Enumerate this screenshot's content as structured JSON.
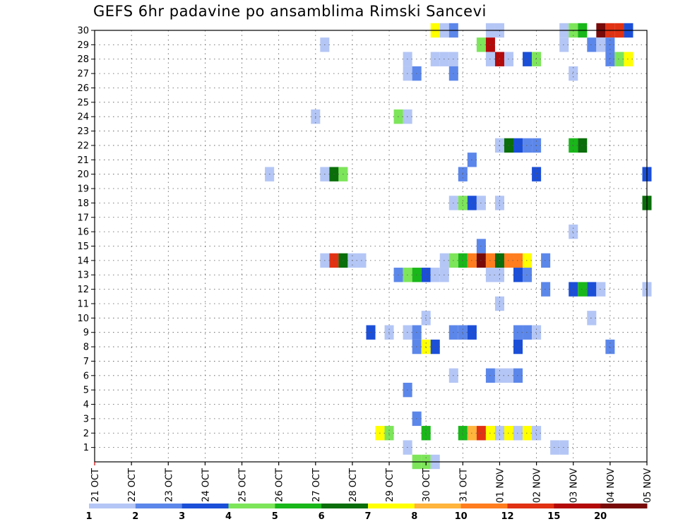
{
  "chart_data": {
    "type": "heatmap",
    "title": "GEFS 6hr padavine po ansamblima Rimski Sancevi",
    "xlabel": "",
    "ylabel": "",
    "x_tick_labels": [
      "21 OCT",
      "22 OCT",
      "23 OCT",
      "24 OCT",
      "25 OCT",
      "26 OCT",
      "27 OCT",
      "28 OCT",
      "29 OCT",
      "30 OCT",
      "31 OCT",
      "01 NOV",
      "02 NOV",
      "03 NOV",
      "04 NOV",
      "05 NOV"
    ],
    "y_tick_labels": [
      "1",
      "2",
      "3",
      "4",
      "5",
      "6",
      "7",
      "8",
      "9",
      "10",
      "11",
      "12",
      "13",
      "14",
      "15",
      "16",
      "17",
      "18",
      "19",
      "20",
      "21",
      "22",
      "23",
      "24",
      "25",
      "26",
      "27",
      "28",
      "29",
      "30"
    ],
    "x_range_steps": [
      0,
      60
    ],
    "steps_per_day": 4,
    "y_range": [
      0,
      30
    ],
    "grid": true,
    "colorbar": {
      "labels": [
        "1",
        "2",
        "3",
        "4",
        "5",
        "6",
        "7",
        "8",
        "10",
        "12",
        "15",
        "20"
      ],
      "colors": [
        "#b4c6f5",
        "#5c87ea",
        "#1c4fd8",
        "#7de55a",
        "#19b719",
        "#0a6e0a",
        "#ffff00",
        "#ffb43c",
        "#ff7d1e",
        "#e13214",
        "#b40a0a",
        "#780a0a"
      ]
    },
    "cells": [
      [
        37,
        30,
        7
      ],
      [
        38,
        30,
        1
      ],
      [
        39,
        30,
        2
      ],
      [
        43,
        30,
        1
      ],
      [
        44,
        30,
        1
      ],
      [
        51,
        30,
        1
      ],
      [
        52,
        30,
        4
      ],
      [
        53,
        30,
        5
      ],
      [
        55,
        30,
        12
      ],
      [
        56,
        30,
        10
      ],
      [
        57,
        30,
        10
      ],
      [
        58,
        30,
        3
      ],
      [
        25,
        29,
        1
      ],
      [
        42,
        29,
        4
      ],
      [
        43,
        29,
        11
      ],
      [
        51,
        29,
        1
      ],
      [
        54,
        29,
        2
      ],
      [
        55,
        29,
        1
      ],
      [
        56,
        29,
        2
      ],
      [
        34,
        28,
        1
      ],
      [
        37,
        28,
        1
      ],
      [
        38,
        28,
        1
      ],
      [
        39,
        28,
        1
      ],
      [
        43,
        28,
        1
      ],
      [
        44,
        28,
        11
      ],
      [
        45,
        28,
        1
      ],
      [
        47,
        28,
        3
      ],
      [
        48,
        28,
        4
      ],
      [
        56,
        28,
        2
      ],
      [
        57,
        28,
        4
      ],
      [
        58,
        28,
        7
      ],
      [
        34,
        27,
        1
      ],
      [
        35,
        27,
        2
      ],
      [
        39,
        27,
        2
      ],
      [
        52,
        27,
        1
      ],
      [
        24,
        24,
        1
      ],
      [
        33,
        24,
        4
      ],
      [
        34,
        24,
        1
      ],
      [
        44,
        22,
        1
      ],
      [
        45,
        22,
        6
      ],
      [
        46,
        22,
        3
      ],
      [
        47,
        22,
        2
      ],
      [
        48,
        22,
        2
      ],
      [
        52,
        22,
        5
      ],
      [
        53,
        22,
        6
      ],
      [
        41,
        21,
        2
      ],
      [
        19,
        20,
        1
      ],
      [
        25,
        20,
        1
      ],
      [
        26,
        20,
        6
      ],
      [
        27,
        20,
        4
      ],
      [
        40,
        20,
        2
      ],
      [
        48,
        20,
        3
      ],
      [
        60,
        20,
        3
      ],
      [
        39,
        18,
        1
      ],
      [
        40,
        18,
        4
      ],
      [
        41,
        18,
        3
      ],
      [
        42,
        18,
        1
      ],
      [
        44,
        18,
        1
      ],
      [
        60,
        18,
        6
      ],
      [
        52,
        16,
        1
      ],
      [
        42,
        15,
        2
      ],
      [
        25,
        14,
        1
      ],
      [
        26,
        14,
        10
      ],
      [
        27,
        14,
        6
      ],
      [
        28,
        14,
        1
      ],
      [
        29,
        14,
        1
      ],
      [
        38,
        14,
        1
      ],
      [
        39,
        14,
        4
      ],
      [
        40,
        14,
        5
      ],
      [
        41,
        14,
        9
      ],
      [
        42,
        14,
        12
      ],
      [
        43,
        14,
        9
      ],
      [
        44,
        14,
        6
      ],
      [
        45,
        14,
        9
      ],
      [
        46,
        14,
        9
      ],
      [
        47,
        14,
        7
      ],
      [
        49,
        14,
        2
      ],
      [
        33,
        13,
        2
      ],
      [
        34,
        13,
        4
      ],
      [
        35,
        13,
        5
      ],
      [
        36,
        13,
        3
      ],
      [
        37,
        13,
        1
      ],
      [
        38,
        13,
        1
      ],
      [
        43,
        13,
        1
      ],
      [
        44,
        13,
        1
      ],
      [
        46,
        13,
        3
      ],
      [
        47,
        13,
        2
      ],
      [
        49,
        12,
        2
      ],
      [
        52,
        12,
        3
      ],
      [
        53,
        12,
        5
      ],
      [
        54,
        12,
        3
      ],
      [
        55,
        12,
        1
      ],
      [
        60,
        12,
        1
      ],
      [
        44,
        11,
        1
      ],
      [
        36,
        10,
        1
      ],
      [
        54,
        10,
        1
      ],
      [
        30,
        9,
        3
      ],
      [
        32,
        9,
        1
      ],
      [
        34,
        9,
        1
      ],
      [
        35,
        9,
        2
      ],
      [
        39,
        9,
        2
      ],
      [
        40,
        9,
        2
      ],
      [
        41,
        9,
        3
      ],
      [
        46,
        9,
        2
      ],
      [
        47,
        9,
        2
      ],
      [
        48,
        9,
        1
      ],
      [
        35,
        8,
        2
      ],
      [
        36,
        8,
        7
      ],
      [
        37,
        8,
        3
      ],
      [
        46,
        8,
        3
      ],
      [
        56,
        8,
        2
      ],
      [
        39,
        6,
        1
      ],
      [
        43,
        6,
        2
      ],
      [
        44,
        6,
        1
      ],
      [
        45,
        6,
        1
      ],
      [
        46,
        6,
        2
      ],
      [
        34,
        5,
        2
      ],
      [
        35,
        3,
        2
      ],
      [
        31,
        2,
        7
      ],
      [
        32,
        2,
        4
      ],
      [
        36,
        2,
        5
      ],
      [
        40,
        2,
        5
      ],
      [
        41,
        2,
        8
      ],
      [
        42,
        2,
        10
      ],
      [
        43,
        2,
        7
      ],
      [
        44,
        2,
        1
      ],
      [
        45,
        2,
        7
      ],
      [
        46,
        2,
        1
      ],
      [
        47,
        2,
        7
      ],
      [
        48,
        2,
        1
      ],
      [
        34,
        1,
        1
      ],
      [
        50,
        1,
        1
      ],
      [
        51,
        1,
        1
      ],
      [
        35,
        0,
        4
      ],
      [
        36,
        0,
        4
      ],
      [
        37,
        0,
        1
      ]
    ]
  }
}
